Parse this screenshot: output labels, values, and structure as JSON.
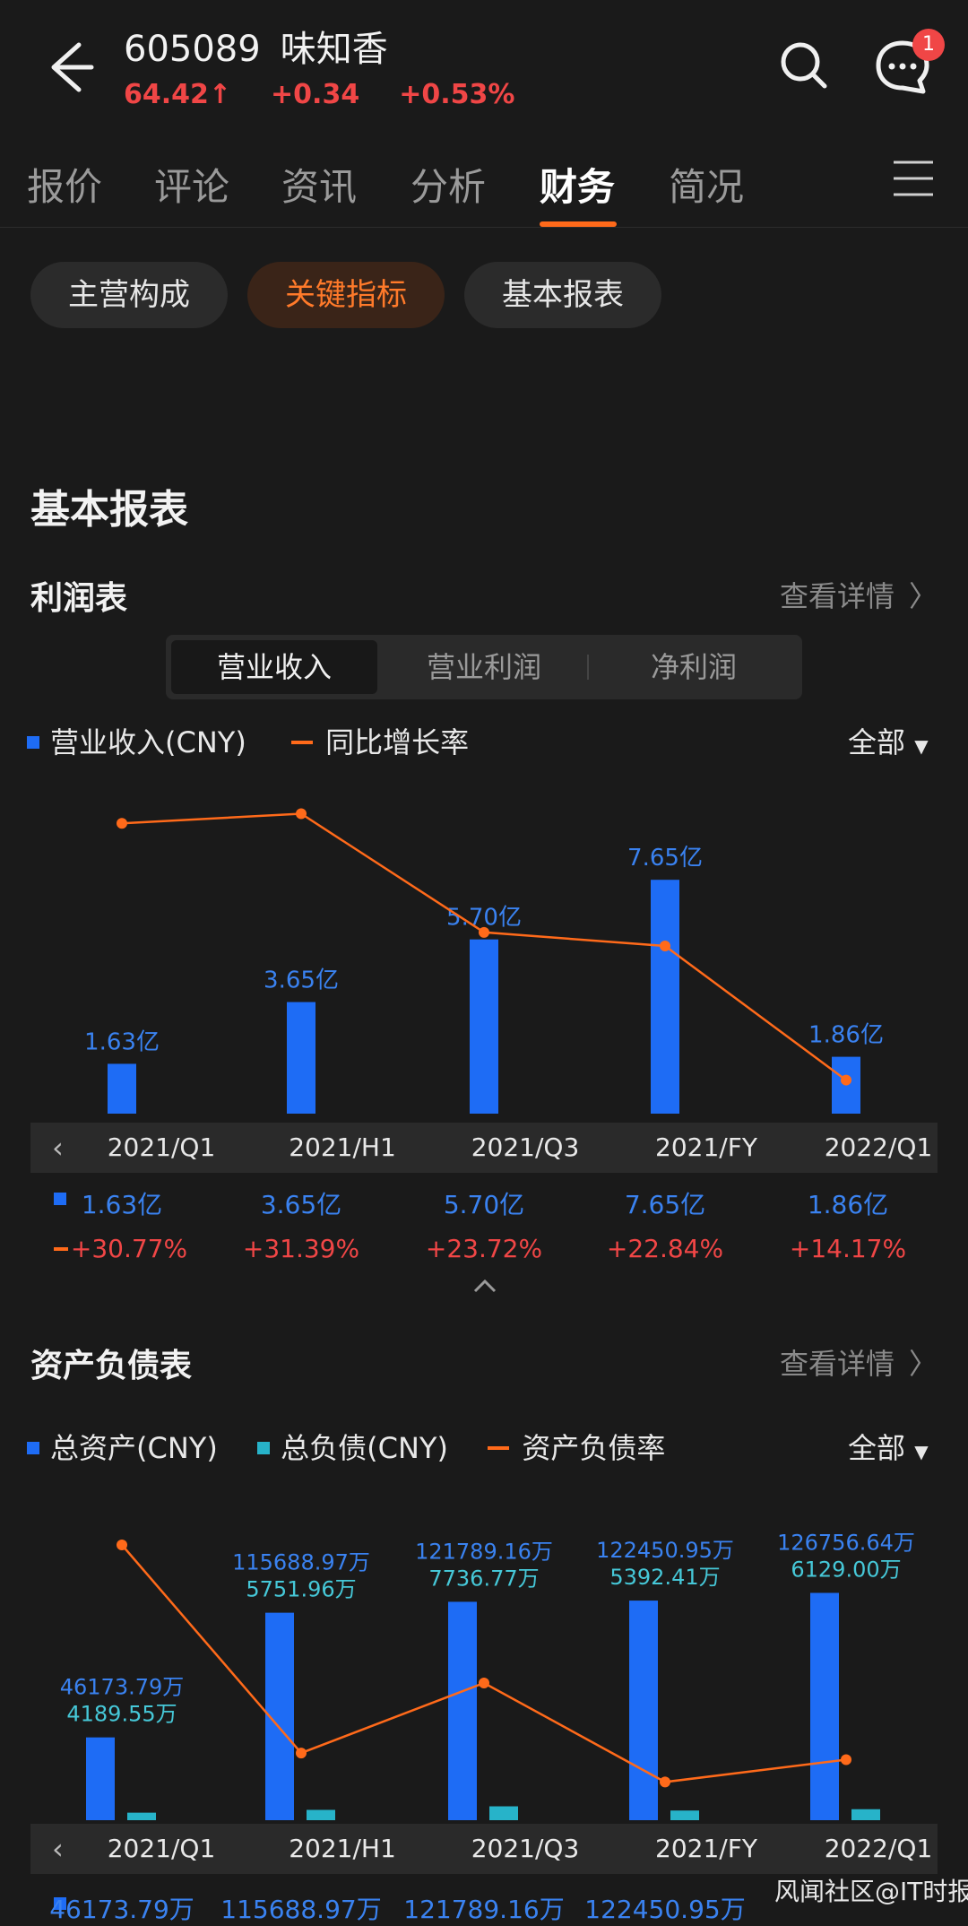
{
  "header": {
    "stock_code": "605089",
    "stock_name": "味知香",
    "price": "64.42",
    "price_arrow": "↑",
    "change": "+0.34",
    "change_pct": "+0.53%",
    "message_badge": "1",
    "icons": [
      "back-arrow-icon",
      "search-icon",
      "message-icon",
      "menu-icon"
    ]
  },
  "tabs": [
    {
      "label": "报价"
    },
    {
      "label": "评论"
    },
    {
      "label": "资讯"
    },
    {
      "label": "分析"
    },
    {
      "label": "财务",
      "active": true
    },
    {
      "label": "简况"
    }
  ],
  "pills": [
    {
      "label": "主营构成"
    },
    {
      "label": "关键指标",
      "active": true
    },
    {
      "label": "基本报表"
    }
  ],
  "section_title": "基本报表",
  "income": {
    "title": "利润表",
    "detail": "查看详情",
    "segments": [
      {
        "label": "营业收入",
        "active": true
      },
      {
        "label": "营业利润"
      },
      {
        "label": "净利润"
      }
    ],
    "legend_bar": "营业收入(CNY)",
    "legend_line": "同比增长率",
    "filter": "全部",
    "values": [
      "1.63亿",
      "3.65亿",
      "5.70亿",
      "7.65亿",
      "1.86亿"
    ],
    "growth": [
      "+30.77%",
      "+31.39%",
      "+23.72%",
      "+22.84%",
      "+14.17%"
    ]
  },
  "balance": {
    "title": "资产负债表",
    "detail": "查看详情",
    "legend_assets": "总资产(CNY)",
    "legend_liab": "总负债(CNY)",
    "legend_ratio": "资产负债率",
    "filter": "全部",
    "assets_labels": [
      "46173.79万",
      "115688.97万",
      "121789.16万",
      "122450.95万",
      "126756.64万"
    ],
    "liab_labels": [
      "4189.55万",
      "5751.96万",
      "7736.77万",
      "5392.41万",
      "6129.00万"
    ]
  },
  "periods": [
    "2021/Q1",
    "2021/H1",
    "2021/Q3",
    "2021/FY",
    "2022/Q1"
  ],
  "chart_data": [
    {
      "type": "bar",
      "categories": [
        "2021/Q1",
        "2021/H1",
        "2021/Q3",
        "2021/FY",
        "2022/Q1"
      ],
      "series": [
        {
          "name": "营业收入(CNY)",
          "values": [
            1.63,
            3.65,
            5.7,
            7.65,
            1.86
          ],
          "unit": "亿"
        },
        {
          "name": "同比增长率",
          "type": "line",
          "values": [
            30.77,
            31.39,
            23.72,
            22.84,
            14.17
          ],
          "unit": "%"
        }
      ]
    },
    {
      "type": "bar",
      "categories": [
        "2021/Q1",
        "2021/H1",
        "2021/Q3",
        "2021/FY",
        "2022/Q1"
      ],
      "series": [
        {
          "name": "总资产(CNY)",
          "values": [
            46173.79,
            115688.97,
            121789.16,
            122450.95,
            126756.64
          ],
          "unit": "万"
        },
        {
          "name": "总负债(CNY)",
          "values": [
            4189.55,
            5751.96,
            7736.77,
            5392.41,
            6129.0
          ],
          "unit": "万"
        },
        {
          "name": "资产负债率",
          "type": "line",
          "values": [
            9.07,
            4.97,
            6.35,
            4.4,
            4.84
          ],
          "unit": "%"
        }
      ]
    }
  ],
  "watermark": "风闻社区@IT时报",
  "colors": {
    "accent": "#ff6a1a",
    "up": "#f04646",
    "bar_blue": "#1e6cf5",
    "bar_cyan": "#27b3c9",
    "label_blue": "#3a82f0"
  }
}
